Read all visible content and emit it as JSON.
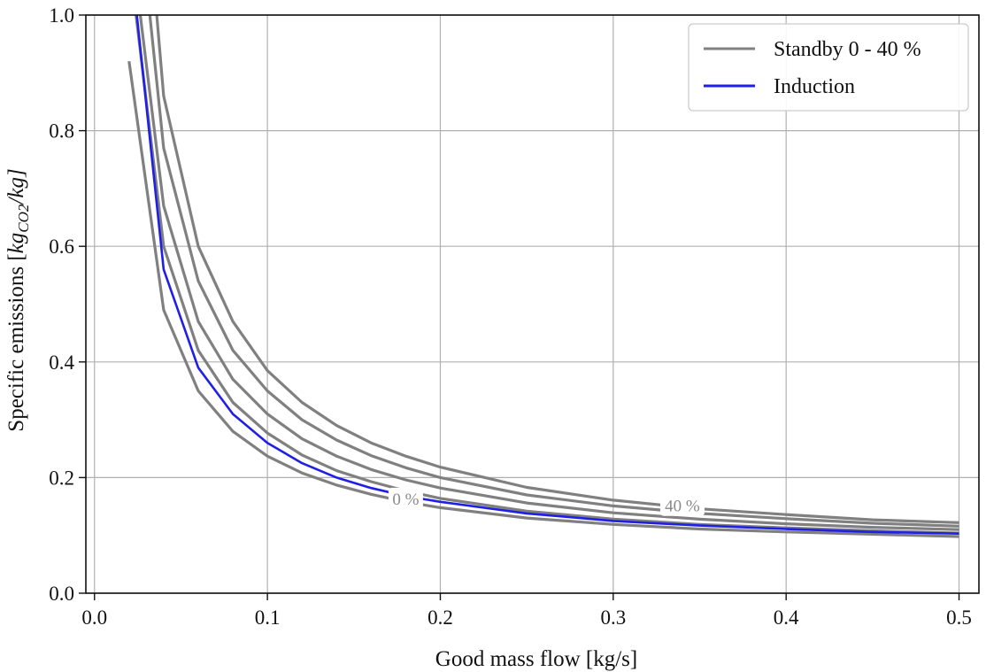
{
  "chart_data": {
    "type": "line",
    "xlabel": "Good mass flow [kg/s]",
    "ylabel": {
      "prefix": "Specific emissions [",
      "kg": "kg",
      "sub": "CO2",
      "suffix": "/kg]"
    },
    "xlim": [
      -0.005,
      0.5115
    ],
    "ylim": [
      0.0,
      1.0
    ],
    "xticks": [
      0.0,
      0.1,
      0.2,
      0.3,
      0.4,
      0.5
    ],
    "xtick_labels": [
      "0.0",
      "0.1",
      "0.2",
      "0.3",
      "0.4",
      "0.5"
    ],
    "yticks": [
      0.0,
      0.2,
      0.4,
      0.6,
      0.8,
      1.0
    ],
    "ytick_labels": [
      "0.0",
      "0.2",
      "0.4",
      "0.6",
      "0.8",
      "1.0"
    ],
    "grid": true,
    "legend_position": "top-right",
    "legend": [
      {
        "label": "Standby 0 - 40 %",
        "color": "#808080"
      },
      {
        "label": "Induction",
        "color": "#1f1fe6"
      }
    ],
    "contour_labels": [
      {
        "text": "0 %",
        "x": 0.18,
        "y": 0.164
      },
      {
        "text": "40 %",
        "x": 0.34,
        "y": 0.152
      }
    ],
    "series": [
      {
        "group": "standby",
        "color": "#808080",
        "x": [
          0.02,
          0.04,
          0.06,
          0.08,
          0.1,
          0.12,
          0.14,
          0.16,
          0.18,
          0.2,
          0.25,
          0.3,
          0.35,
          0.4,
          0.45,
          0.5
        ],
        "y": [
          0.92,
          0.49,
          0.35,
          0.28,
          0.237,
          0.208,
          0.187,
          0.171,
          0.158,
          0.148,
          0.13,
          0.119,
          0.111,
          0.106,
          0.102,
          0.098
        ]
      },
      {
        "group": "standby",
        "color": "#808080",
        "x": [
          0.024,
          0.04,
          0.06,
          0.08,
          0.1,
          0.12,
          0.14,
          0.16,
          0.18,
          0.2,
          0.25,
          0.3,
          0.35,
          0.4,
          0.45,
          0.5
        ],
        "y": [
          1.0,
          0.6,
          0.42,
          0.33,
          0.277,
          0.239,
          0.212,
          0.193,
          0.177,
          0.164,
          0.142,
          0.128,
          0.119,
          0.113,
          0.108,
          0.104
        ]
      },
      {
        "group": "standby",
        "color": "#808080",
        "x": [
          0.0265,
          0.04,
          0.06,
          0.08,
          0.1,
          0.12,
          0.14,
          0.16,
          0.18,
          0.2,
          0.25,
          0.3,
          0.35,
          0.4,
          0.45,
          0.5
        ],
        "y": [
          1.0,
          0.67,
          0.47,
          0.37,
          0.31,
          0.267,
          0.237,
          0.214,
          0.196,
          0.182,
          0.156,
          0.139,
          0.128,
          0.12,
          0.114,
          0.11
        ]
      },
      {
        "group": "standby",
        "color": "#808080",
        "x": [
          0.032,
          0.04,
          0.06,
          0.08,
          0.1,
          0.12,
          0.14,
          0.16,
          0.18,
          0.2,
          0.25,
          0.3,
          0.35,
          0.4,
          0.45,
          0.5
        ],
        "y": [
          1.0,
          0.77,
          0.54,
          0.42,
          0.35,
          0.3,
          0.265,
          0.238,
          0.217,
          0.2,
          0.17,
          0.151,
          0.138,
          0.129,
          0.121,
          0.116
        ]
      },
      {
        "group": "standby",
        "color": "#808080",
        "x": [
          0.036,
          0.04,
          0.06,
          0.08,
          0.1,
          0.12,
          0.14,
          0.16,
          0.18,
          0.2,
          0.25,
          0.3,
          0.35,
          0.4,
          0.45,
          0.5
        ],
        "y": [
          1.0,
          0.86,
          0.6,
          0.47,
          0.385,
          0.33,
          0.29,
          0.26,
          0.237,
          0.218,
          0.183,
          0.161,
          0.146,
          0.136,
          0.127,
          0.122
        ]
      },
      {
        "group": "induction",
        "color": "#1f1fe6",
        "x": [
          0.0245,
          0.04,
          0.06,
          0.08,
          0.1,
          0.12,
          0.14,
          0.16,
          0.18,
          0.2,
          0.25,
          0.3,
          0.35,
          0.4,
          0.45,
          0.5
        ],
        "y": [
          1.0,
          0.56,
          0.39,
          0.31,
          0.26,
          0.225,
          0.2,
          0.182,
          0.168,
          0.158,
          0.138,
          0.125,
          0.117,
          0.111,
          0.106,
          0.103
        ]
      }
    ]
  }
}
